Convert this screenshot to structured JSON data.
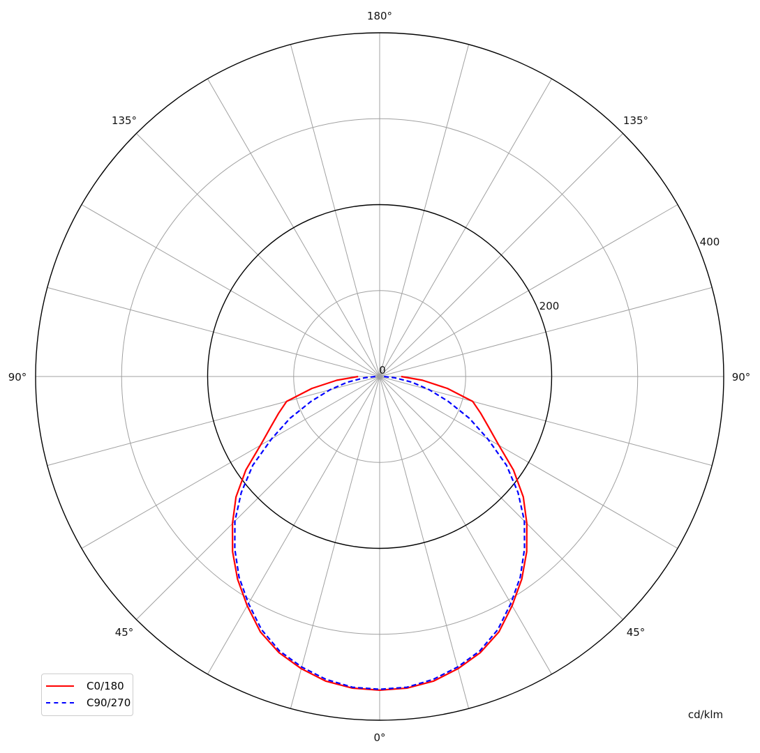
{
  "chart_data": {
    "type": "polar-line",
    "title": "",
    "unit_label": "cd/klm",
    "radial_range": [
      0,
      400
    ],
    "radial_ticks": [
      0,
      200,
      400
    ],
    "radial_minor_gridlines": [
      100,
      300
    ],
    "angle_step_degrees": 15,
    "angle_labels": [
      "0°",
      "45°",
      "90°",
      "135°",
      "180°",
      "135°",
      "90°",
      "45°"
    ],
    "grid": true,
    "legend_position": "bottom-left",
    "gamma": [
      0,
      5,
      10,
      15,
      20,
      25,
      30,
      35,
      40,
      45,
      50,
      55,
      60,
      65,
      70,
      75,
      80,
      85,
      90
    ],
    "series": [
      {
        "name": "C0/180",
        "color": "#ff0000",
        "dash": "solid",
        "values": [
          365,
          364,
          360,
          352,
          342,
          328,
          308,
          288,
          266,
          242,
          218,
          190,
          160,
          140,
          125,
          112,
          80,
          50,
          25
        ]
      },
      {
        "name": "C90/270",
        "color": "#0000ff",
        "dash": "dashed",
        "values": [
          364,
          363,
          358,
          350,
          340,
          325,
          305,
          285,
          262,
          238,
          210,
          180,
          145,
          115,
          85,
          60,
          38,
          18,
          5
        ]
      }
    ]
  }
}
